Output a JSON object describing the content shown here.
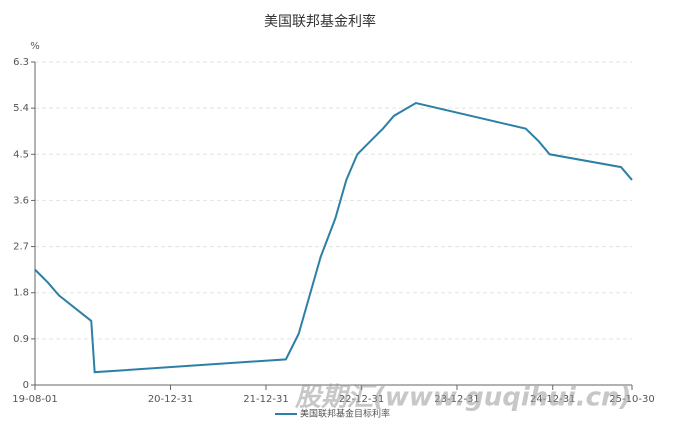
{
  "chart_data": {
    "type": "line",
    "title": "美国联邦基金利率",
    "y_unit": "%",
    "watermark": "股期汇(www.guqihui.cn)",
    "x": [
      "19-08-01",
      "19-09-19",
      "19-10-31",
      "20-03-03",
      "20-03-16",
      "22-03-17",
      "22-05-05",
      "22-06-16",
      "22-07-28",
      "22-09-22",
      "22-11-03",
      "22-12-15",
      "23-02-02",
      "23-03-23",
      "23-05-04",
      "23-07-27",
      "24-09-19",
      "24-11-08",
      "24-12-19",
      "25-09-18",
      "25-10-30"
    ],
    "series": [
      {
        "name": "美国联邦基金目标利率",
        "color": "#2e7fa6",
        "values": [
          2.25,
          2.0,
          1.75,
          1.25,
          0.25,
          0.5,
          1.0,
          1.75,
          2.5,
          3.25,
          4.0,
          4.5,
          4.75,
          5.0,
          5.25,
          5.5,
          5.0,
          4.75,
          4.5,
          4.25,
          4.0
        ]
      }
    ],
    "xlim": [
      "19-08-01",
      "25-10-30"
    ],
    "xticks": [
      "19-08-01",
      "20-12-31",
      "21-12-31",
      "22-12-31",
      "23-12-31",
      "24-12-31",
      "25-10-30"
    ],
    "ylim": [
      0,
      6.3
    ],
    "yticks": [
      0,
      0.9,
      1.8,
      2.7,
      3.6,
      4.5,
      5.4,
      6.3
    ],
    "grid": true
  }
}
